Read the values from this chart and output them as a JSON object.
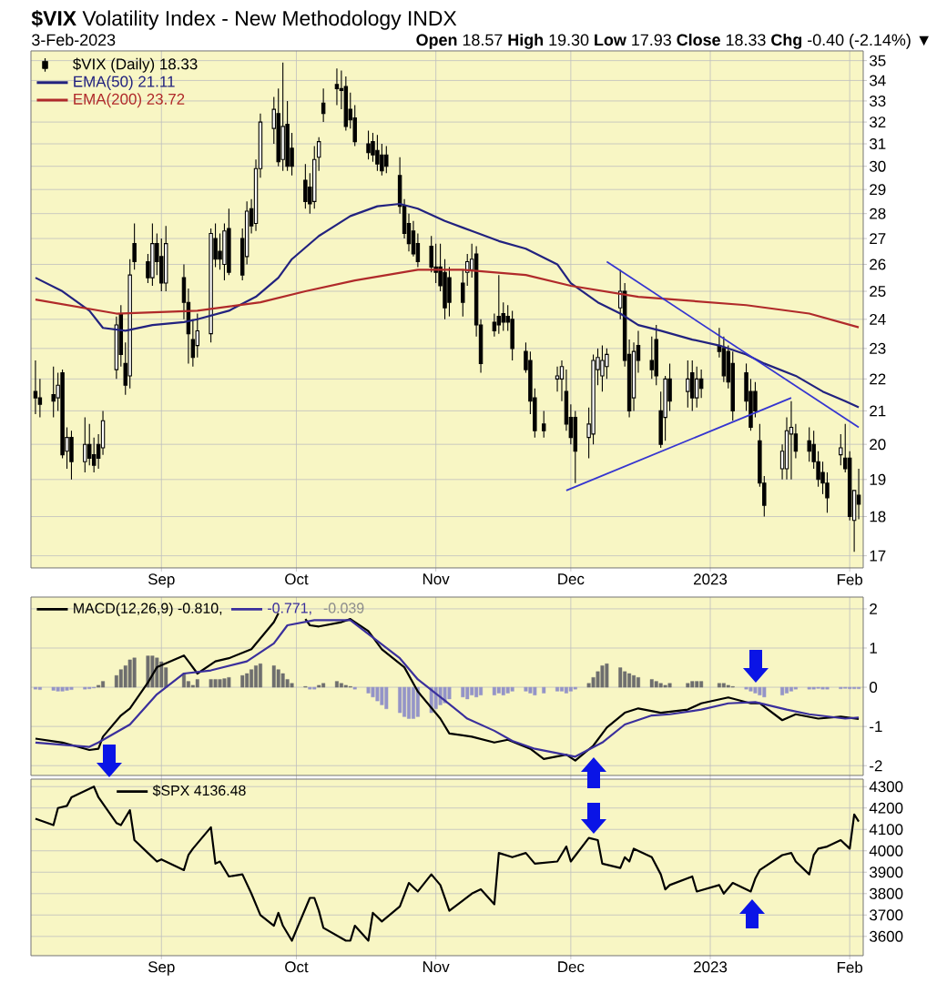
{
  "chart_data": [
    {
      "type": "candlestick",
      "title": "**$VIX** Volatility Index - New Methodology INDX",
      "subtitle": "3-Feb-2023",
      "annotations": [
        "**Open** 18.57 **High** 19.30 **Low** 17.93 **Close** 18.33 **Chg** -0.40 (-2.14%) ▼"
      ],
      "x": [
        "2022-08-04",
        "2022-08-05",
        "2022-08-08",
        "2022-08-09",
        "2022-08-10",
        "2022-08-11",
        "2022-08-12",
        "2022-08-15",
        "2022-08-16",
        "2022-08-17",
        "2022-08-18",
        "2022-08-19",
        "2022-08-22",
        "2022-08-23",
        "2022-08-24",
        "2022-08-25",
        "2022-08-26",
        "2022-08-29",
        "2022-08-30",
        "2022-08-31",
        "2022-09-01",
        "2022-09-02",
        "2022-09-06",
        "2022-09-07",
        "2022-09-08",
        "2022-09-09",
        "2022-09-12",
        "2022-09-13",
        "2022-09-14",
        "2022-09-15",
        "2022-09-16",
        "2022-09-19",
        "2022-09-20",
        "2022-09-21",
        "2022-09-22",
        "2022-09-23",
        "2022-09-26",
        "2022-09-27",
        "2022-09-28",
        "2022-09-29",
        "2022-09-30",
        "2022-10-03",
        "2022-10-04",
        "2022-10-05",
        "2022-10-06",
        "2022-10-07",
        "2022-10-10",
        "2022-10-11",
        "2022-10-12",
        "2022-10-13",
        "2022-10-14",
        "2022-10-17",
        "2022-10-18",
        "2022-10-19",
        "2022-10-20",
        "2022-10-21",
        "2022-10-24",
        "2022-10-25",
        "2022-10-26",
        "2022-10-27",
        "2022-10-28",
        "2022-10-31",
        "2022-11-01",
        "2022-11-02",
        "2022-11-03",
        "2022-11-04",
        "2022-11-07",
        "2022-11-08",
        "2022-11-09",
        "2022-11-10",
        "2022-11-11",
        "2022-11-14",
        "2022-11-15",
        "2022-11-16",
        "2022-11-17",
        "2022-11-18",
        "2022-11-21",
        "2022-11-22",
        "2022-11-23",
        "2022-11-25",
        "2022-11-28",
        "2022-11-29",
        "2022-11-30",
        "2022-12-01",
        "2022-12-02",
        "2022-12-05",
        "2022-12-06",
        "2022-12-07",
        "2022-12-08",
        "2022-12-09",
        "2022-12-12",
        "2022-12-13",
        "2022-12-14",
        "2022-12-15",
        "2022-12-16",
        "2022-12-19",
        "2022-12-20",
        "2022-12-21",
        "2022-12-22",
        "2022-12-23",
        "2022-12-27",
        "2022-12-28",
        "2022-12-29",
        "2022-12-30",
        "2023-01-03",
        "2023-01-04",
        "2023-01-05",
        "2023-01-06",
        "2023-01-09",
        "2023-01-10",
        "2023-01-11",
        "2023-01-12",
        "2023-01-13",
        "2023-01-17",
        "2023-01-18",
        "2023-01-19",
        "2023-01-20",
        "2023-01-23",
        "2023-01-24",
        "2023-01-25",
        "2023-01-26",
        "2023-01-27",
        "2023-01-30",
        "2023-01-31",
        "2023-02-01",
        "2023-02-02",
        "2023-02-03"
      ],
      "xlim": [
        "2022-08-03",
        "2023-02-04"
      ],
      "xticks": [
        {
          "value": "2022-09-01",
          "label": "Sep"
        },
        {
          "value": "2022-10-01",
          "label": "Oct"
        },
        {
          "value": "2022-11-01",
          "label": "Nov"
        },
        {
          "value": "2022-12-01",
          "label": "Dec"
        },
        {
          "value": "2023-01-01",
          "label": "2023"
        },
        {
          "value": "2023-02-01",
          "label": "Feb"
        }
      ],
      "ylim": [
        16.7,
        35.5
      ],
      "yticks": [
        17,
        18,
        19,
        20,
        21,
        22,
        23,
        24,
        25,
        26,
        27,
        28,
        29,
        30,
        31,
        32,
        33,
        34,
        35
      ],
      "log": true,
      "grid": true,
      "legend": "top left",
      "series": [
        {
          "name": "$VIX (Daily) 18.33",
          "color": "#000000",
          "ohlc": [
            [
              21.6,
              22.6,
              20.9,
              21.4
            ],
            [
              21.4,
              22.0,
              20.8,
              21.2
            ],
            [
              21.5,
              22.4,
              20.8,
              21.3
            ],
            [
              21.4,
              22.2,
              21.0,
              21.8
            ],
            [
              22.2,
              22.3,
              19.6,
              19.7
            ],
            [
              19.8,
              20.5,
              19.3,
              20.2
            ],
            [
              20.2,
              20.4,
              19.0,
              19.5
            ],
            [
              19.5,
              20.8,
              19.2,
              20.0
            ],
            [
              20.0,
              20.6,
              19.4,
              19.6
            ],
            [
              19.7,
              20.2,
              19.2,
              19.4
            ],
            [
              20.0,
              20.3,
              19.3,
              19.6
            ],
            [
              19.9,
              21.0,
              19.7,
              20.7
            ],
            [
              22.3,
              24.1,
              22.0,
              23.8
            ],
            [
              24.2,
              24.5,
              22.4,
              22.8
            ],
            [
              22.5,
              23.2,
              21.5,
              21.8
            ],
            [
              22.1,
              26.2,
              21.7,
              25.6
            ],
            [
              26.8,
              27.6,
              25.8,
              26.1
            ],
            [
              26.1,
              26.4,
              25.3,
              25.5
            ],
            [
              25.5,
              27.6,
              25.2,
              26.8
            ],
            [
              26.8,
              27.2,
              25.6,
              26.1
            ],
            [
              26.3,
              27.0,
              25.0,
              25.3
            ],
            [
              25.3,
              27.5,
              25.0,
              26.8
            ],
            [
              25.5,
              26.0,
              24.0,
              24.6
            ],
            [
              24.6,
              25.1,
              22.5,
              23.5
            ],
            [
              23.3,
              24.0,
              22.4,
              22.7
            ],
            [
              23.1,
              24.2,
              22.7,
              23.6
            ],
            [
              23.5,
              27.4,
              23.2,
              27.2
            ],
            [
              27.0,
              27.6,
              25.9,
              26.2
            ],
            [
              26.5,
              27.2,
              25.8,
              26.2
            ],
            [
              26.0,
              27.6,
              25.4,
              27.3
            ],
            [
              27.4,
              28.2,
              25.6,
              25.7
            ],
            [
              27.0,
              27.4,
              25.4,
              25.6
            ],
            [
              26.3,
              28.5,
              26.0,
              28.1
            ],
            [
              28.2,
              28.6,
              27.2,
              27.5
            ],
            [
              27.6,
              30.3,
              27.3,
              29.9
            ],
            [
              29.9,
              32.4,
              29.5,
              32.0
            ],
            [
              31.7,
              33.2,
              31.0,
              32.6
            ],
            [
              32.4,
              33.6,
              30.0,
              30.2
            ],
            [
              30.3,
              34.9,
              29.8,
              31.8
            ],
            [
              31.9,
              33.0,
              29.8,
              30.0
            ],
            [
              30.8,
              31.5,
              29.6,
              30.0
            ],
            [
              29.4,
              30.1,
              28.2,
              28.5
            ],
            [
              29.1,
              29.7,
              28.0,
              28.4
            ],
            [
              28.5,
              30.9,
              28.2,
              30.3
            ],
            [
              30.4,
              31.3,
              29.8,
              31.1
            ],
            [
              32.9,
              33.6,
              32.0,
              32.4
            ],
            [
              33.8,
              34.6,
              32.8,
              33.6
            ],
            [
              33.6,
              34.5,
              32.6,
              33.5
            ],
            [
              33.7,
              34.2,
              31.6,
              31.8
            ],
            [
              32.6,
              33.4,
              31.7,
              32.1
            ],
            [
              32.2,
              32.8,
              30.9,
              31.1
            ],
            [
              31.0,
              31.6,
              30.3,
              30.6
            ],
            [
              31.1,
              31.5,
              30.2,
              30.5
            ],
            [
              30.7,
              31.4,
              29.8,
              30.1
            ],
            [
              30.5,
              31.0,
              29.6,
              29.8
            ],
            [
              30.5,
              30.9,
              29.7,
              30.0
            ],
            [
              29.6,
              30.4,
              28.0,
              28.3
            ],
            [
              28.3,
              28.6,
              27.0,
              27.2
            ],
            [
              27.6,
              28.0,
              26.5,
              26.8
            ],
            [
              27.3,
              27.7,
              26.3,
              26.4
            ],
            [
              26.8,
              27.2,
              25.9,
              26.1
            ],
            [
              26.7,
              27.1,
              25.7,
              25.9
            ],
            [
              25.9,
              26.8,
              25.3,
              25.7
            ],
            [
              25.9,
              26.8,
              25.0,
              25.2
            ],
            [
              25.7,
              26.2,
              24.0,
              24.4
            ],
            [
              25.5,
              25.9,
              24.1,
              24.6
            ],
            [
              25.3,
              25.8,
              24.1,
              24.6
            ],
            [
              25.7,
              26.4,
              25.2,
              26.1
            ],
            [
              25.8,
              26.8,
              25.5,
              26.2
            ],
            [
              26.4,
              26.7,
              23.4,
              23.8
            ],
            [
              23.8,
              24.0,
              22.2,
              22.5
            ],
            [
              23.9,
              24.2,
              23.4,
              23.6
            ],
            [
              24.1,
              25.6,
              23.5,
              23.8
            ],
            [
              24.2,
              24.6,
              23.6,
              23.9
            ],
            [
              24.1,
              24.5,
              23.6,
              23.9
            ],
            [
              24.0,
              24.3,
              22.6,
              23.0
            ],
            [
              22.9,
              23.2,
              22.2,
              22.3
            ],
            [
              22.6,
              22.9,
              20.9,
              21.3
            ],
            [
              21.4,
              21.7,
              20.2,
              20.4
            ],
            [
              20.6,
              21.0,
              20.2,
              20.4
            ],
            [
              22.0,
              22.4,
              21.6,
              22.1
            ],
            [
              22.0,
              22.6,
              21.3,
              22.4
            ],
            [
              21.6,
              22.3,
              20.4,
              20.6
            ],
            [
              20.8,
              21.2,
              20.0,
              20.2
            ],
            [
              20.8,
              21.0,
              18.9,
              19.8
            ],
            [
              20.2,
              21.1,
              19.6,
              20.6
            ],
            [
              20.3,
              22.8,
              20.0,
              22.6
            ],
            [
              22.3,
              23.0,
              21.8,
              22.7
            ],
            [
              22.1,
              23.1,
              21.6,
              22.6
            ],
            [
              22.4,
              23.0,
              22.0,
              22.8
            ],
            [
              24.4,
              25.8,
              24.0,
              25.0
            ],
            [
              25.0,
              25.3,
              22.4,
              22.6
            ],
            [
              22.8,
              23.3,
              20.8,
              21.0
            ],
            [
              21.4,
              23.2,
              21.0,
              22.9
            ],
            [
              23.1,
              23.6,
              22.2,
              22.6
            ],
            [
              22.6,
              23.4,
              22.0,
              22.3
            ],
            [
              23.3,
              23.8,
              21.8,
              22.1
            ],
            [
              21.0,
              21.6,
              19.9,
              20.0
            ],
            [
              20.8,
              22.1,
              20.1,
              22.0
            ],
            [
              22.0,
              22.5,
              21.0,
              21.3
            ],
            [
              21.6,
              22.6,
              21.1,
              22.0
            ],
            [
              22.2,
              22.6,
              21.0,
              21.4
            ],
            [
              21.4,
              22.4,
              21.1,
              22.0
            ],
            [
              22.0,
              22.3,
              21.4,
              21.7
            ],
            [
              23.1,
              23.7,
              22.7,
              22.9
            ],
            [
              23.0,
              23.4,
              21.9,
              22.1
            ],
            [
              22.9,
              23.1,
              21.7,
              21.9
            ],
            [
              22.5,
              22.9,
              20.7,
              21.0
            ],
            [
              22.2,
              22.5,
              21.0,
              21.3
            ],
            [
              21.6,
              22.0,
              20.4,
              20.5
            ],
            [
              21.6,
              21.9,
              20.8,
              21.0
            ],
            [
              20.1,
              20.6,
              18.8,
              18.9
            ],
            [
              18.9,
              19.1,
              18.0,
              18.3
            ],
            [
              19.3,
              20.0,
              19.0,
              19.8
            ],
            [
              19.3,
              20.8,
              19.0,
              20.4
            ],
            [
              20.3,
              21.3,
              19.0,
              20.5
            ],
            [
              20.3,
              20.6,
              19.6,
              19.8
            ],
            [
              20.1,
              20.5,
              19.5,
              19.8
            ],
            [
              20.0,
              20.4,
              19.3,
              19.5
            ],
            [
              19.5,
              19.8,
              18.8,
              19.0
            ],
            [
              19.2,
              19.5,
              18.6,
              18.9
            ],
            [
              18.9,
              19.2,
              18.1,
              18.5
            ],
            [
              19.7,
              20.3,
              19.4,
              19.9
            ],
            [
              19.6,
              20.6,
              19.2,
              19.3
            ],
            [
              19.6,
              19.8,
              17.9,
              18.0
            ],
            [
              17.9,
              18.7,
              17.1,
              18.7
            ],
            [
              18.57,
              19.3,
              17.93,
              18.33
            ]
          ]
        },
        {
          "name": "EMA(50) 21.11",
          "type": "line",
          "color": "#22227f",
          "x": [
            "2022-08-04",
            "2022-08-10",
            "2022-08-16",
            "2022-08-19",
            "2022-08-24",
            "2022-08-30",
            "2022-09-06",
            "2022-09-09",
            "2022-09-16",
            "2022-09-22",
            "2022-09-27",
            "2022-09-30",
            "2022-10-06",
            "2022-10-13",
            "2022-10-19",
            "2022-10-24",
            "2022-10-28",
            "2022-11-03",
            "2022-11-09",
            "2022-11-15",
            "2022-11-21",
            "2022-11-28",
            "2022-12-01",
            "2022-12-07",
            "2022-12-12",
            "2022-12-16",
            "2022-12-21",
            "2022-12-28",
            "2023-01-03",
            "2023-01-09",
            "2023-01-13",
            "2023-01-20",
            "2023-01-26",
            "2023-01-31",
            "2023-02-03"
          ],
          "values": [
            25.5,
            25.0,
            24.3,
            23.7,
            23.6,
            23.8,
            23.9,
            24.0,
            24.3,
            24.8,
            25.5,
            26.2,
            27.1,
            27.9,
            28.3,
            28.4,
            28.2,
            27.7,
            27.3,
            26.9,
            26.6,
            26.0,
            25.3,
            24.6,
            24.2,
            23.8,
            23.6,
            23.3,
            23.1,
            22.8,
            22.5,
            22.1,
            21.6,
            21.3,
            21.11
          ]
        },
        {
          "name": "EMA(200) 23.72",
          "type": "line",
          "color": "#b02a2a",
          "x": [
            "2022-08-04",
            "2022-08-22",
            "2022-09-09",
            "2022-09-23",
            "2022-10-03",
            "2022-10-14",
            "2022-10-28",
            "2022-11-07",
            "2022-11-21",
            "2022-12-01",
            "2022-12-16",
            "2023-01-09",
            "2023-01-23",
            "2023-02-03"
          ],
          "values": [
            24.7,
            24.2,
            24.3,
            24.6,
            25.0,
            25.4,
            25.8,
            25.8,
            25.6,
            25.2,
            24.8,
            24.5,
            24.2,
            23.72
          ]
        },
        {
          "type": "line",
          "color": "#3535d0",
          "x": [
            "2022-12-09",
            "2023-02-03"
          ],
          "values": [
            26.1,
            20.5
          ]
        },
        {
          "type": "line",
          "color": "#3535d0",
          "x": [
            "2022-11-30",
            "2023-01-19"
          ],
          "values": [
            18.7,
            21.4
          ]
        }
      ]
    },
    {
      "type": "line",
      "x": [
        "2022-08-04",
        "2022-08-05",
        "2022-08-08",
        "2022-08-09",
        "2022-08-10",
        "2022-08-11",
        "2022-08-12",
        "2022-08-15",
        "2022-08-16",
        "2022-08-17",
        "2022-08-18",
        "2022-08-19",
        "2022-08-22",
        "2022-08-23",
        "2022-08-24",
        "2022-08-25",
        "2022-08-26",
        "2022-08-29",
        "2022-08-30",
        "2022-08-31",
        "2022-09-01",
        "2022-09-02",
        "2022-09-06",
        "2022-09-07",
        "2022-09-08",
        "2022-09-09",
        "2022-09-12",
        "2022-09-13",
        "2022-09-14",
        "2022-09-15",
        "2022-09-16",
        "2022-09-19",
        "2022-09-20",
        "2022-09-21",
        "2022-09-22",
        "2022-09-23",
        "2022-09-26",
        "2022-09-27",
        "2022-09-28",
        "2022-09-29",
        "2022-09-30",
        "2022-10-03",
        "2022-10-04",
        "2022-10-05",
        "2022-10-06",
        "2022-10-07",
        "2022-10-10",
        "2022-10-11",
        "2022-10-12",
        "2022-10-13",
        "2022-10-14",
        "2022-10-17",
        "2022-10-18",
        "2022-10-19",
        "2022-10-20",
        "2022-10-21",
        "2022-10-24",
        "2022-10-25",
        "2022-10-26",
        "2022-10-27",
        "2022-10-28",
        "2022-10-31",
        "2022-11-01",
        "2022-11-02",
        "2022-11-03",
        "2022-11-04",
        "2022-11-07",
        "2022-11-08",
        "2022-11-09",
        "2022-11-10",
        "2022-11-11",
        "2022-11-14",
        "2022-11-15",
        "2022-11-16",
        "2022-11-17",
        "2022-11-18",
        "2022-11-21",
        "2022-11-22",
        "2022-11-23",
        "2022-11-25",
        "2022-11-28",
        "2022-11-29",
        "2022-11-30",
        "2022-12-01",
        "2022-12-02",
        "2022-12-05",
        "2022-12-06",
        "2022-12-07",
        "2022-12-08",
        "2022-12-09",
        "2022-12-12",
        "2022-12-13",
        "2022-12-14",
        "2022-12-15",
        "2022-12-16",
        "2022-12-19",
        "2022-12-20",
        "2022-12-21",
        "2022-12-22",
        "2022-12-23",
        "2022-12-27",
        "2022-12-28",
        "2022-12-29",
        "2022-12-30",
        "2023-01-03",
        "2023-01-04",
        "2023-01-05",
        "2023-01-06",
        "2023-01-09",
        "2023-01-10",
        "2023-01-11",
        "2023-01-12",
        "2023-01-13",
        "2023-01-17",
        "2023-01-18",
        "2023-01-19",
        "2023-01-20",
        "2023-01-23",
        "2023-01-24",
        "2023-01-25",
        "2023-01-26",
        "2023-01-27",
        "2023-01-30",
        "2023-01-31",
        "2023-02-01",
        "2023-02-02",
        "2023-02-03"
      ],
      "xlim": [
        "2022-08-03",
        "2023-02-04"
      ],
      "xticks": [
        {
          "value": "2022-09-01",
          "label": null
        },
        {
          "value": "2022-10-01",
          "label": null
        },
        {
          "value": "2022-11-01",
          "label": null
        },
        {
          "value": "2022-12-01",
          "label": null
        },
        {
          "value": "2023-01-01",
          "label": null
        },
        {
          "value": "2023-02-01",
          "label": null
        }
      ],
      "ylim": [
        -2.25,
        2.3
      ],
      "yticks": [
        -2,
        -1,
        0,
        1,
        2
      ],
      "grid": true,
      "legend": "top left",
      "tick_labels": "y",
      "series": [
        {
          "name": "MACD(12,26,9) -0.810,",
          "color": "#000000",
          "x": [
            "2022-08-04",
            "2022-08-10",
            "2022-08-16",
            "2022-08-18",
            "2022-08-19",
            "2022-08-23",
            "2022-08-25",
            "2022-08-29",
            "2022-08-31",
            "2022-09-06",
            "2022-09-07",
            "2022-09-09",
            "2022-09-13",
            "2022-09-16",
            "2022-09-21",
            "2022-09-26",
            "2022-09-27",
            "2022-09-29",
            "2022-10-03",
            "2022-10-04",
            "2022-10-06",
            "2022-10-11",
            "2022-10-13",
            "2022-10-17",
            "2022-10-20",
            "2022-10-25",
            "2022-10-28",
            "2022-11-02",
            "2022-11-04",
            "2022-11-09",
            "2022-11-14",
            "2022-11-17",
            "2022-11-22",
            "2022-11-25",
            "2022-11-30",
            "2022-12-02",
            "2022-12-06",
            "2022-12-09",
            "2022-12-13",
            "2022-12-16",
            "2022-12-21",
            "2022-12-27",
            "2022-12-30",
            "2023-01-05",
            "2023-01-10",
            "2023-01-12",
            "2023-01-17",
            "2023-01-20",
            "2023-01-25",
            "2023-01-30",
            "2023-02-03"
          ],
          "values": [
            -1.31,
            -1.41,
            -1.6,
            -1.57,
            -1.26,
            -0.72,
            -0.54,
            0.12,
            0.51,
            0.81,
            0.66,
            0.35,
            0.66,
            0.74,
            0.97,
            1.66,
            1.89,
            null,
            1.74,
            1.58,
            1.55,
            1.66,
            1.74,
            1.43,
            0.97,
            0.51,
            -0.11,
            -0.8,
            -1.18,
            -1.26,
            -1.41,
            -1.34,
            -1.57,
            -1.83,
            -1.72,
            -1.87,
            -1.49,
            -1.03,
            -0.65,
            -0.54,
            -0.65,
            -0.57,
            -0.41,
            -0.26,
            -0.41,
            -0.41,
            -0.84,
            -0.69,
            -0.8,
            -0.75,
            -0.81
          ]
        },
        {
          "name": "-0.771,",
          "color": "#3a2f9c",
          "x": [
            "2022-08-04",
            "2022-08-16",
            "2022-08-18",
            "2022-08-25",
            "2022-08-31",
            "2022-09-06",
            "2022-09-12",
            "2022-09-20",
            "2022-09-26",
            "2022-09-29",
            "2022-10-05",
            "2022-10-13",
            "2022-10-18",
            "2022-10-24",
            "2022-10-28",
            "2022-11-03",
            "2022-11-08",
            "2022-11-14",
            "2022-11-18",
            "2022-11-23",
            "2022-12-02",
            "2022-12-08",
            "2022-12-13",
            "2022-12-19",
            "2022-12-23",
            "2022-12-30",
            "2023-01-05",
            "2023-01-11",
            "2023-01-18",
            "2023-01-23",
            "2023-01-31",
            "2023-02-03"
          ],
          "values": [
            -1.41,
            -1.52,
            -1.41,
            -0.95,
            -0.18,
            0.35,
            0.43,
            0.66,
            1.12,
            1.58,
            1.71,
            1.71,
            1.27,
            0.74,
            0.2,
            -0.34,
            -0.8,
            -1.11,
            -1.37,
            -1.57,
            -1.77,
            -1.41,
            -0.95,
            -0.72,
            -0.69,
            -0.57,
            -0.41,
            -0.38,
            -0.57,
            -0.69,
            -0.8,
            -0.771
          ]
        },
        {
          "name": "-0.039",
          "type": "bar",
          "color": "#8c8c8c",
          "values": [
            -0.05,
            -0.06,
            -0.08,
            -0.1,
            -0.1,
            -0.08,
            -0.06,
            -0.05,
            -0.04,
            -0.02,
            0.05,
            0.15,
            0.3,
            0.45,
            0.55,
            0.7,
            0.75,
            0.8,
            0.8,
            0.75,
            0.65,
            0.5,
            0.35,
            0.15,
            0.05,
            0.2,
            0.2,
            0.2,
            0.2,
            0.22,
            0.25,
            0.3,
            0.35,
            0.45,
            0.55,
            0.6,
            0.55,
            0.45,
            0.35,
            0.2,
            0.1,
            0.02,
            -0.05,
            -0.05,
            0.05,
            0.1,
            0.15,
            0.1,
            0.05,
            0.02,
            -0.05,
            -0.15,
            -0.25,
            -0.35,
            -0.45,
            -0.55,
            -0.65,
            -0.75,
            -0.8,
            -0.8,
            -0.75,
            -0.65,
            -0.55,
            -0.45,
            -0.4,
            -0.3,
            -0.25,
            -0.3,
            -0.2,
            -0.25,
            -0.2,
            -0.2,
            -0.15,
            -0.2,
            -0.15,
            -0.1,
            -0.1,
            -0.15,
            -0.2,
            -0.15,
            -0.1,
            -0.1,
            -0.15,
            -0.1,
            -0.05,
            0.1,
            0.25,
            0.4,
            0.55,
            0.6,
            0.5,
            0.4,
            0.35,
            0.3,
            0.25,
            0.2,
            0.15,
            0.1,
            0.05,
            0.1,
            0.1,
            0.15,
            0.15,
            0.15,
            0.1,
            0.1,
            0.05,
            0.02,
            -0.05,
            -0.1,
            -0.15,
            -0.2,
            -0.25,
            -0.2,
            -0.15,
            -0.1,
            -0.05,
            -0.05,
            -0.05,
            -0.03,
            -0.05,
            -0.05,
            -0.04,
            -0.03,
            -0.04,
            -0.04,
            -0.039
          ],
          "colors": [
            "#9494c8",
            "#9494c8",
            "#9494c8",
            "#9494c8",
            "#9494c8",
            "#9494c8",
            "#9494c8",
            "#9494c8",
            "#9494c8",
            "#9494c8",
            "#6e6e6e",
            "#6e6e6e",
            "#6e6e6e",
            "#6e6e6e",
            "#6e6e6e",
            "#6e6e6e",
            "#6e6e6e",
            "#6e6e6e",
            "#6e6e6e",
            "#6e6e6e",
            "#6e6e6e",
            "#6e6e6e",
            "#6e6e6e",
            "#6e6e6e",
            "#6e6e6e",
            "#6e6e6e",
            "#6e6e6e",
            "#6e6e6e",
            "#6e6e6e",
            "#6e6e6e",
            "#6e6e6e",
            "#6e6e6e",
            "#6e6e6e",
            "#6e6e6e",
            "#6e6e6e",
            "#6e6e6e",
            "#6e6e6e",
            "#6e6e6e",
            "#6e6e6e",
            "#6e6e6e",
            "#6e6e6e",
            "#6e6e6e",
            "#9494c8",
            "#9494c8",
            "#6e6e6e",
            "#6e6e6e",
            "#6e6e6e",
            "#6e6e6e",
            "#6e6e6e",
            "#6e6e6e",
            "#9494c8",
            "#9494c8",
            "#9494c8",
            "#9494c8",
            "#9494c8",
            "#9494c8",
            "#9494c8",
            "#9494c8",
            "#9494c8",
            "#9494c8",
            "#9494c8",
            "#9494c8",
            "#9494c8",
            "#9494c8",
            "#9494c8",
            "#9494c8",
            "#9494c8",
            "#9494c8",
            "#9494c8",
            "#9494c8",
            "#9494c8",
            "#9494c8",
            "#9494c8",
            "#9494c8",
            "#9494c8",
            "#9494c8",
            "#9494c8",
            "#9494c8",
            "#9494c8",
            "#9494c8",
            "#9494c8",
            "#9494c8",
            "#9494c8",
            "#9494c8",
            "#9494c8",
            "#6e6e6e",
            "#6e6e6e",
            "#6e6e6e",
            "#6e6e6e",
            "#6e6e6e",
            "#6e6e6e",
            "#6e6e6e",
            "#6e6e6e",
            "#6e6e6e",
            "#6e6e6e",
            "#6e6e6e",
            "#6e6e6e",
            "#6e6e6e",
            "#6e6e6e",
            "#6e6e6e",
            "#6e6e6e",
            "#6e6e6e",
            "#6e6e6e",
            "#6e6e6e",
            "#6e6e6e",
            "#6e6e6e",
            "#6e6e6e",
            "#6e6e6e",
            "#9494c8",
            "#9494c8",
            "#9494c8",
            "#9494c8",
            "#9494c8",
            "#9494c8",
            "#9494c8",
            "#9494c8",
            "#9494c8",
            "#9494c8",
            "#9494c8",
            "#9494c8",
            "#9494c8",
            "#9494c8",
            "#9494c8",
            "#9494c8",
            "#9494c8",
            "#9494c8",
            "#9494c8"
          ]
        }
      ]
    },
    {
      "type": "line",
      "xlim": [
        "2022-08-03",
        "2023-02-04"
      ],
      "xticks": [
        {
          "value": "2022-09-01",
          "label": "Sep"
        },
        {
          "value": "2022-10-01",
          "label": "Oct"
        },
        {
          "value": "2022-11-01",
          "label": "Nov"
        },
        {
          "value": "2022-12-01",
          "label": "Dec"
        },
        {
          "value": "2023-01-01",
          "label": "2023"
        },
        {
          "value": "2023-02-01",
          "label": "Feb"
        }
      ],
      "ylim": [
        3510,
        4335
      ],
      "yticks": [
        3600,
        3700,
        3800,
        3900,
        4000,
        4100,
        4200,
        4300
      ],
      "grid": true,
      "legend": "top left",
      "series": [
        {
          "name": "$SPX 4136.48",
          "color": "#000000",
          "x": [
            "2022-08-04",
            "2022-08-08",
            "2022-08-09",
            "2022-08-11",
            "2022-08-12",
            "2022-08-17",
            "2022-08-18",
            "2022-08-22",
            "2022-08-23",
            "2022-08-25",
            "2022-08-26",
            "2022-08-29",
            "2022-08-31",
            "2022-09-01",
            "2022-09-06",
            "2022-09-07",
            "2022-09-08",
            "2022-09-12",
            "2022-09-13",
            "2022-09-14",
            "2022-09-16",
            "2022-09-19",
            "2022-09-21",
            "2022-09-23",
            "2022-09-26",
            "2022-09-27",
            "2022-09-28",
            "2022-09-30",
            "2022-10-04",
            "2022-10-05",
            "2022-10-06",
            "2022-10-07",
            "2022-10-12",
            "2022-10-13",
            "2022-10-14",
            "2022-10-17",
            "2022-10-18",
            "2022-10-20",
            "2022-10-24",
            "2022-10-26",
            "2022-10-28",
            "2022-10-31",
            "2022-11-02",
            "2022-11-04",
            "2022-11-09",
            "2022-11-11",
            "2022-11-14",
            "2022-11-15",
            "2022-11-18",
            "2022-11-21",
            "2022-11-23",
            "2022-11-28",
            "2022-11-30",
            "2022-12-01",
            "2022-12-05",
            "2022-12-07",
            "2022-12-08",
            "2022-12-12",
            "2022-12-13",
            "2022-12-14",
            "2022-12-15",
            "2022-12-19",
            "2022-12-21",
            "2022-12-22",
            "2022-12-23",
            "2022-12-28",
            "2022-12-29",
            "2023-01-03",
            "2023-01-04",
            "2023-01-06",
            "2023-01-10",
            "2023-01-11",
            "2023-01-12",
            "2023-01-17",
            "2023-01-19",
            "2023-01-20",
            "2023-01-23",
            "2023-01-24",
            "2023-01-25",
            "2023-01-27",
            "2023-01-30",
            "2023-02-01",
            "2023-02-02",
            "2023-02-03"
          ],
          "values": [
            4150,
            4120,
            4200,
            4210,
            4250,
            4300,
            4250,
            4130,
            4120,
            4190,
            4050,
            3990,
            3950,
            3960,
            3910,
            3980,
            4010,
            4110,
            3940,
            3950,
            3880,
            3890,
            3800,
            3700,
            3650,
            3710,
            3650,
            3580,
            3780,
            3780,
            3720,
            3640,
            3580,
            3580,
            3650,
            3580,
            3710,
            3670,
            3740,
            3850,
            3810,
            3890,
            3840,
            3720,
            3800,
            3820,
            3750,
            3990,
            3970,
            3990,
            3940,
            3950,
            4020,
            3950,
            4060,
            4050,
            3940,
            3920,
            3970,
            3950,
            4010,
            3970,
            3890,
            3820,
            3840,
            3880,
            3810,
            3840,
            3800,
            3850,
            3810,
            3870,
            3910,
            3980,
            3990,
            3950,
            3890,
            3980,
            4010,
            4020,
            4050,
            4010,
            4170,
            4136.48
          ]
        }
      ]
    }
  ]
}
